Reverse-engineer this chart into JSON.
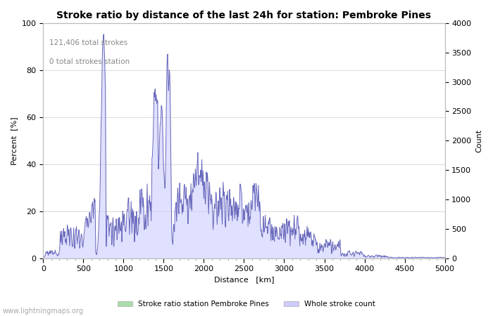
{
  "title": "Stroke ratio by distance of the last 24h for station: Pembroke Pines",
  "xlabel": "Distance   [km]",
  "ylabel_left": "Percent  [%]",
  "ylabel_right": "Count",
  "annotation_line1": "121,406 total strokes",
  "annotation_line2": "0 total strokes station",
  "xlim": [
    0,
    5000
  ],
  "ylim_left": [
    0,
    100
  ],
  "ylim_right": [
    0,
    4000
  ],
  "yticks_left": [
    0,
    20,
    40,
    60,
    80,
    100
  ],
  "yticks_right": [
    0,
    500,
    1000,
    1500,
    2000,
    2500,
    3000,
    3500,
    4000
  ],
  "xticks": [
    0,
    500,
    1000,
    1500,
    2000,
    2500,
    3000,
    3500,
    4000,
    4500,
    5000
  ],
  "fill_color": "#ccccff",
  "line_color": "#6666bb",
  "fill_alpha": 0.6,
  "line_width": 0.7,
  "legend_patch1_color": "#aaddaa",
  "legend_patch2_color": "#ccccff",
  "legend_label1": "Stroke ratio station Pembroke Pines",
  "legend_label2": "Whole stroke count",
  "watermark": "www.lightningmaps.org",
  "background_color": "#ffffff",
  "grid_color": "#cccccc",
  "title_fontsize": 10,
  "axis_fontsize": 8,
  "tick_fontsize": 8
}
